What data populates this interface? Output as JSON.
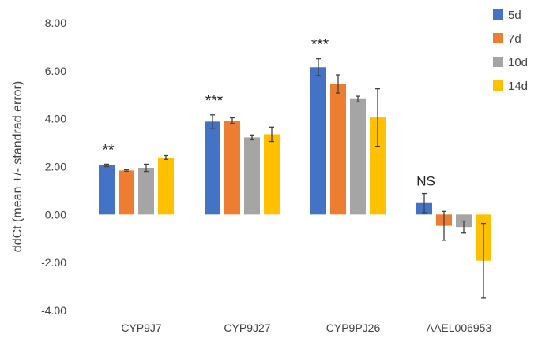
{
  "chart_data": {
    "type": "bar",
    "title": "",
    "xlabel": "",
    "ylabel": "ddCt (mean +/- standrad error)",
    "ylim": [
      -4,
      8
    ],
    "yticks": [
      "-4.00",
      "-2.00",
      "0.00",
      "2.00",
      "4.00",
      "6.00",
      "8.00"
    ],
    "ytick_values": [
      -4,
      -2,
      0,
      2,
      4,
      6,
      8
    ],
    "grid": false,
    "legend_position": "top-right",
    "categories": [
      "CYP9J7",
      "CYP9J27",
      "CYP9PJ26",
      "AAEL006953"
    ],
    "annotations": [
      "**",
      "***",
      "***",
      "NS"
    ],
    "series": [
      {
        "name": "5d",
        "color": "#4472C4",
        "values": [
          2.05,
          3.88,
          6.15,
          0.48
        ],
        "errors": [
          0.05,
          0.28,
          0.35,
          0.4
        ]
      },
      {
        "name": "7d",
        "color": "#ED7D31",
        "values": [
          1.84,
          3.92,
          5.45,
          -0.47
        ],
        "errors": [
          0.03,
          0.12,
          0.38,
          0.6
        ]
      },
      {
        "name": "10d",
        "color": "#A5A5A5",
        "values": [
          1.95,
          3.22,
          4.82,
          -0.52
        ],
        "errors": [
          0.15,
          0.1,
          0.12,
          0.25
        ]
      },
      {
        "name": "14d",
        "color": "#FFC000",
        "values": [
          2.38,
          3.35,
          4.05,
          -1.92
        ],
        "errors": [
          0.08,
          0.3,
          1.2,
          1.55
        ]
      }
    ]
  }
}
